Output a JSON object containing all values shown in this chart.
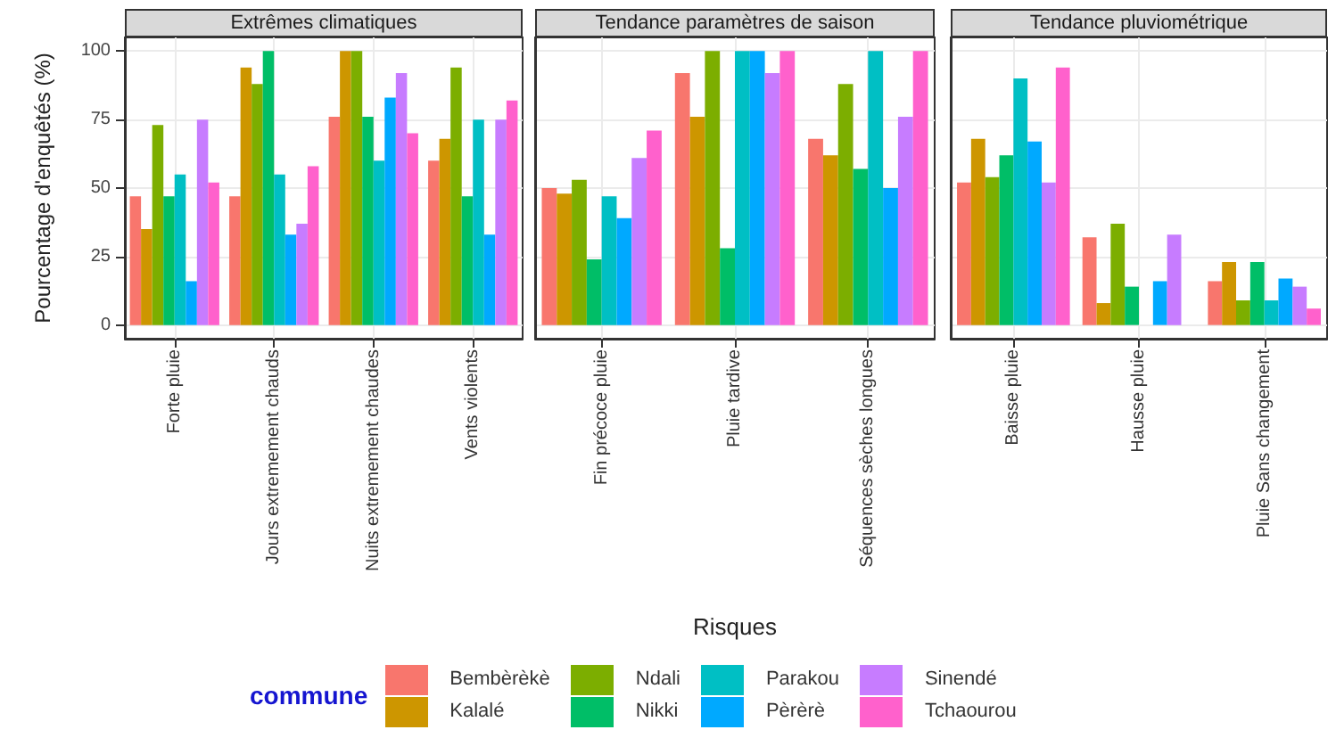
{
  "chart_data": [
    {
      "type": "bar",
      "title": "Extrêmes climatiques",
      "ylabel": "Pourcentage d'enquêtés (%)",
      "categories": [
        "Forte pluie",
        "Jours extremement chauds",
        "Nuits extremement chaudes",
        "Vents violents"
      ],
      "ylim": [
        -5,
        105
      ],
      "yticks": [
        0,
        25,
        50,
        75,
        100
      ],
      "grid": true,
      "legend": "bottom",
      "legend_title": "commune",
      "series": [
        {
          "name": "Bembèrèkè",
          "color": "#f8766d",
          "values": [
            47,
            47,
            76,
            60
          ]
        },
        {
          "name": "Kalalé",
          "color": "#cd9600",
          "values": [
            35,
            94,
            100,
            68
          ]
        },
        {
          "name": "Ndali",
          "color": "#7cae00",
          "values": [
            73,
            88,
            100,
            94
          ]
        },
        {
          "name": "Nikki",
          "color": "#00be67",
          "values": [
            47,
            100,
            76,
            47
          ]
        },
        {
          "name": "Parakou",
          "color": "#00bfc4",
          "values": [
            55,
            55,
            60,
            75
          ]
        },
        {
          "name": "Pèrèrè",
          "color": "#00a9ff",
          "values": [
            16,
            33,
            83,
            33
          ]
        },
        {
          "name": "Sinendé",
          "color": "#c77cff",
          "values": [
            75,
            37,
            92,
            75
          ]
        },
        {
          "name": "Tchaourou",
          "color": "#ff61cc",
          "values": [
            52,
            58,
            70,
            82
          ]
        }
      ]
    },
    {
      "type": "bar",
      "title": "Tendance paramètres de saison",
      "xlabel": "Risques",
      "categories": [
        "Fin précoce pluie",
        "Pluie tardive",
        "Séquences sèches longues"
      ],
      "ylim": [
        -5,
        105
      ],
      "yticks": [
        0,
        25,
        50,
        75,
        100
      ],
      "grid": true,
      "tick_labels": "x",
      "series": [
        {
          "color": "#f8766d",
          "values": [
            50,
            92,
            68
          ]
        },
        {
          "color": "#cd9600",
          "values": [
            48,
            76,
            62
          ]
        },
        {
          "color": "#7cae00",
          "values": [
            53,
            100,
            88
          ]
        },
        {
          "color": "#00be67",
          "values": [
            24,
            28,
            57
          ]
        },
        {
          "color": "#00bfc4",
          "values": [
            47,
            100,
            100
          ]
        },
        {
          "color": "#00a9ff",
          "values": [
            39,
            100,
            50
          ]
        },
        {
          "color": "#c77cff",
          "values": [
            61,
            92,
            76
          ]
        },
        {
          "color": "#ff61cc",
          "values": [
            71,
            100,
            100
          ]
        }
      ]
    },
    {
      "type": "bar",
      "title": "Tendance pluviométrique",
      "categories": [
        "Baisse pluie",
        "Hausse pluie",
        "Pluie Sans changement"
      ],
      "ylim": [
        -5,
        105
      ],
      "yticks": [
        0,
        25,
        50,
        75,
        100
      ],
      "grid": true,
      "tick_labels": "x",
      "series": [
        {
          "color": "#f8766d",
          "values": [
            52,
            32,
            16
          ]
        },
        {
          "color": "#cd9600",
          "values": [
            68,
            8,
            23
          ]
        },
        {
          "color": "#7cae00",
          "values": [
            54,
            37,
            9
          ]
        },
        {
          "color": "#00be67",
          "values": [
            62,
            14,
            23
          ]
        },
        {
          "color": "#00bfc4",
          "values": [
            90,
            null,
            9
          ]
        },
        {
          "color": "#00a9ff",
          "values": [
            67,
            16,
            17
          ]
        },
        {
          "color": "#c77cff",
          "values": [
            52,
            33,
            14
          ]
        },
        {
          "color": "#ff61cc",
          "values": [
            94,
            null,
            6
          ]
        }
      ]
    }
  ]
}
